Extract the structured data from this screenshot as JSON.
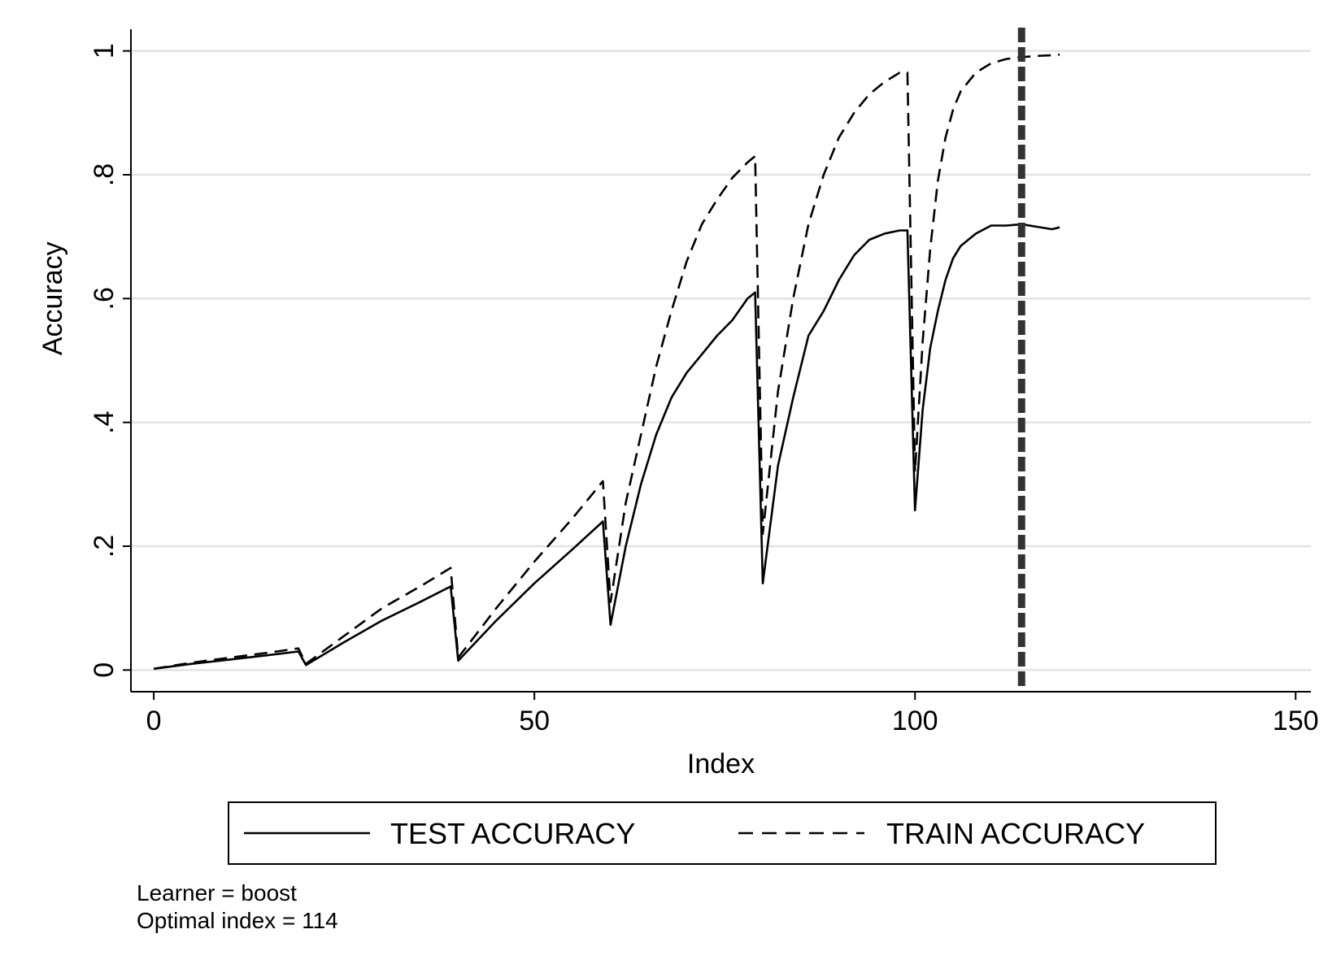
{
  "chart_data": {
    "type": "line",
    "title": "",
    "xlabel": "Index",
    "ylabel": "Accuracy",
    "xlim": [
      -3,
      152
    ],
    "ylim": [
      -0.035,
      1.035
    ],
    "x_ticks": [
      0,
      50,
      100,
      150
    ],
    "x_tick_labels": [
      "0",
      "50",
      "100",
      "150"
    ],
    "y_ticks": [
      0,
      0.2,
      0.4,
      0.6,
      0.8,
      1
    ],
    "y_tick_labels": [
      "0",
      ".2",
      ".4",
      ".6",
      ".8",
      "1"
    ],
    "grid": "horizontal",
    "legend_position": "bottom",
    "reference_line": {
      "x": 114,
      "style": "dashed",
      "color": "#333333"
    },
    "series": [
      {
        "name": "TEST ACCURACY",
        "style": "solid",
        "color": "#000000",
        "x": [
          0,
          5,
          10,
          15,
          19,
          20,
          25,
          30,
          35,
          39,
          40,
          45,
          50,
          55,
          59,
          60,
          62,
          64,
          66,
          68,
          70,
          72,
          74,
          76,
          78,
          79,
          80,
          82,
          84,
          86,
          88,
          90,
          92,
          94,
          96,
          98,
          99,
          100,
          101,
          102,
          103,
          104,
          105,
          106,
          107,
          108,
          110,
          112,
          114,
          116,
          118,
          119
        ],
        "values": [
          0.002,
          0.01,
          0.017,
          0.024,
          0.03,
          0.008,
          0.045,
          0.08,
          0.11,
          0.135,
          0.015,
          0.08,
          0.14,
          0.195,
          0.24,
          0.073,
          0.2,
          0.3,
          0.38,
          0.44,
          0.48,
          0.51,
          0.54,
          0.565,
          0.6,
          0.61,
          0.14,
          0.33,
          0.44,
          0.54,
          0.58,
          0.63,
          0.67,
          0.695,
          0.705,
          0.71,
          0.71,
          0.258,
          0.42,
          0.52,
          0.58,
          0.63,
          0.665,
          0.685,
          0.695,
          0.705,
          0.718,
          0.718,
          0.72,
          0.716,
          0.712,
          0.715
        ]
      },
      {
        "name": "TRAIN ACCURACY",
        "style": "dashed",
        "color": "#000000",
        "x": [
          0,
          5,
          10,
          15,
          19,
          20,
          25,
          30,
          35,
          39,
          40,
          45,
          50,
          55,
          59,
          60,
          62,
          64,
          66,
          68,
          70,
          72,
          74,
          76,
          78,
          79,
          80,
          82,
          84,
          86,
          88,
          90,
          92,
          94,
          96,
          98,
          99,
          100,
          101,
          102,
          103,
          104,
          105,
          106,
          108,
          110,
          112,
          114,
          116,
          118,
          119
        ],
        "values": [
          0.002,
          0.012,
          0.02,
          0.028,
          0.035,
          0.01,
          0.055,
          0.1,
          0.135,
          0.165,
          0.02,
          0.1,
          0.175,
          0.245,
          0.305,
          0.11,
          0.27,
          0.38,
          0.49,
          0.58,
          0.66,
          0.72,
          0.76,
          0.795,
          0.82,
          0.83,
          0.22,
          0.45,
          0.6,
          0.72,
          0.8,
          0.86,
          0.9,
          0.93,
          0.95,
          0.965,
          0.965,
          0.32,
          0.53,
          0.68,
          0.79,
          0.86,
          0.905,
          0.935,
          0.965,
          0.98,
          0.987,
          0.99,
          0.992,
          0.993,
          0.994
        ]
      }
    ]
  },
  "notes": [
    "Learner = boost",
    "Optimal index = 114"
  ]
}
